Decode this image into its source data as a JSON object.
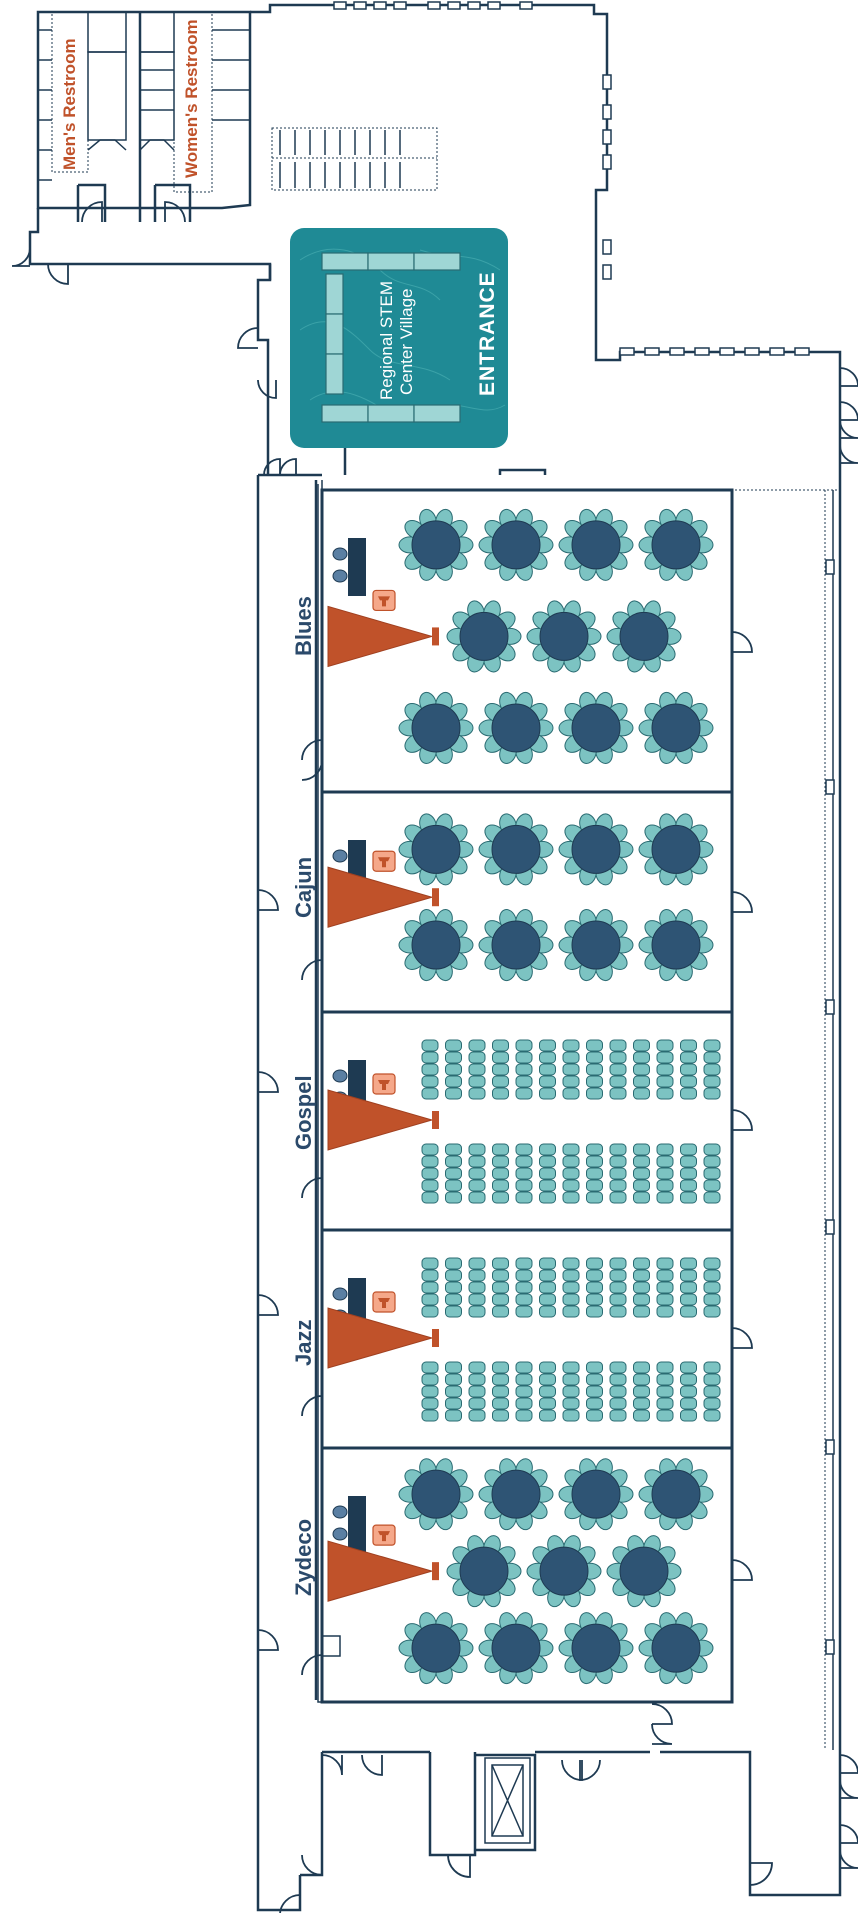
{
  "restrooms": {
    "mens": "Men's Restroom",
    "womens": "Women's Restroom"
  },
  "entrance_area": {
    "village_line1": "Regional STEM",
    "village_line2": "Center Village",
    "entrance": "ENTRANCE",
    "fill_color": "#1f8a95"
  },
  "rooms": [
    {
      "id": "blues",
      "name": "Blues",
      "layout": "rounds",
      "round_rows": [
        4,
        3,
        4
      ]
    },
    {
      "id": "cajun",
      "name": "Cajun",
      "layout": "rounds",
      "round_rows": [
        4,
        4
      ]
    },
    {
      "id": "gospel",
      "name": "Gospel",
      "layout": "theater",
      "chair_cols": 13,
      "chair_rows_per_block": 5
    },
    {
      "id": "jazz",
      "name": "Jazz",
      "layout": "theater",
      "chair_cols": 13,
      "chair_rows_per_block": 5
    },
    {
      "id": "zydeco",
      "name": "Zydeco",
      "layout": "rounds",
      "round_rows": [
        4,
        3,
        4
      ]
    }
  ],
  "colors": {
    "wall": "#1e3a52",
    "label": "#2b4a6b",
    "accent": "#c0522a",
    "table": "#2e5474",
    "chair": "#7cc3c2"
  }
}
